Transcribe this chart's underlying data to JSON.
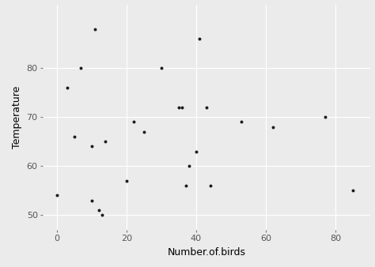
{
  "x": [
    0,
    3,
    5,
    7,
    10,
    10,
    11,
    12,
    13,
    14,
    20,
    22,
    25,
    30,
    35,
    36,
    37,
    38,
    40,
    41,
    43,
    44,
    53,
    62,
    77,
    85
  ],
  "y": [
    54,
    76,
    66,
    80,
    53,
    64,
    88,
    51,
    50,
    65,
    57,
    69,
    67,
    80,
    72,
    72,
    56,
    60,
    63,
    86,
    72,
    56,
    69,
    68,
    70,
    55
  ],
  "xlabel": "Number.of.birds",
  "ylabel": "Temperature",
  "xlim": [
    -4,
    90
  ],
  "ylim": [
    47,
    93
  ],
  "xticks": [
    0,
    20,
    40,
    60,
    80
  ],
  "yticks": [
    50,
    60,
    70,
    80
  ],
  "bg_color": "#EBEBEB",
  "grid_color": "#FFFFFF",
  "point_color": "#1a1a1a",
  "point_size": 8,
  "xlabel_fontsize": 9,
  "ylabel_fontsize": 9,
  "tick_labelsize": 8,
  "tick_color": "#7a7a7a"
}
